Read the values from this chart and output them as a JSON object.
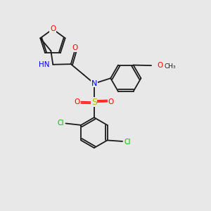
{
  "bg_color": "#e8e8e8",
  "bond_color": "#1a1a1a",
  "atom_colors": {
    "O": "#ff0000",
    "N": "#0000ff",
    "S": "#b8b800",
    "Cl": "#00b800",
    "C": "#1a1a1a"
  },
  "scale": 1.0
}
